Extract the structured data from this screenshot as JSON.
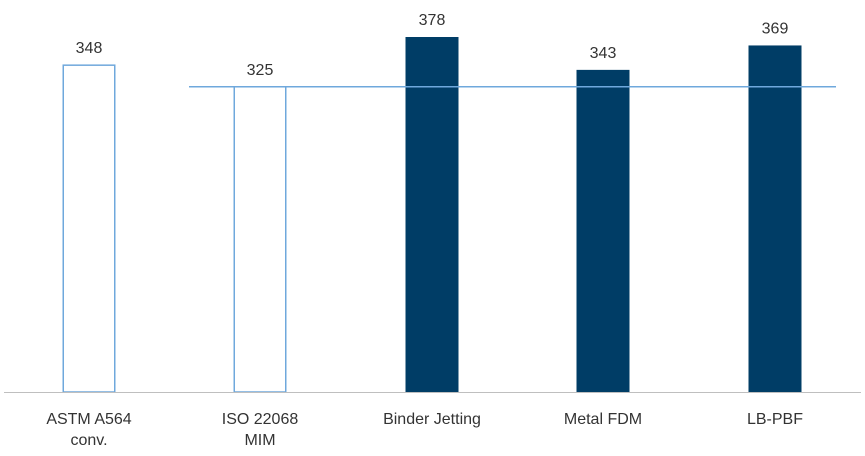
{
  "chart_data": {
    "type": "bar",
    "title": "",
    "xlabel": "",
    "ylabel": "",
    "ylim": [
      0,
      378
    ],
    "grid": false,
    "legend": "none",
    "categories": [
      [
        "ASTM A564",
        "conv."
      ],
      [
        "ISO 22068",
        "MIM"
      ],
      [
        "Binder Jetting"
      ],
      [
        "Metal FDM"
      ],
      [
        "LB-PBF"
      ]
    ],
    "values": [
      348,
      325,
      378,
      343,
      369
    ],
    "value_labels": [
      "348",
      "325",
      "378",
      "343",
      "369"
    ],
    "bar_styles": [
      "outline",
      "outline",
      "filled",
      "filled",
      "filled"
    ],
    "reference_line": {
      "value": 325
    },
    "colors": {
      "filled": "#003d66",
      "outline": "#6fa8dc",
      "reference": "#6fa8dc",
      "axis": "#bfbfbf",
      "text": "#333333"
    }
  }
}
